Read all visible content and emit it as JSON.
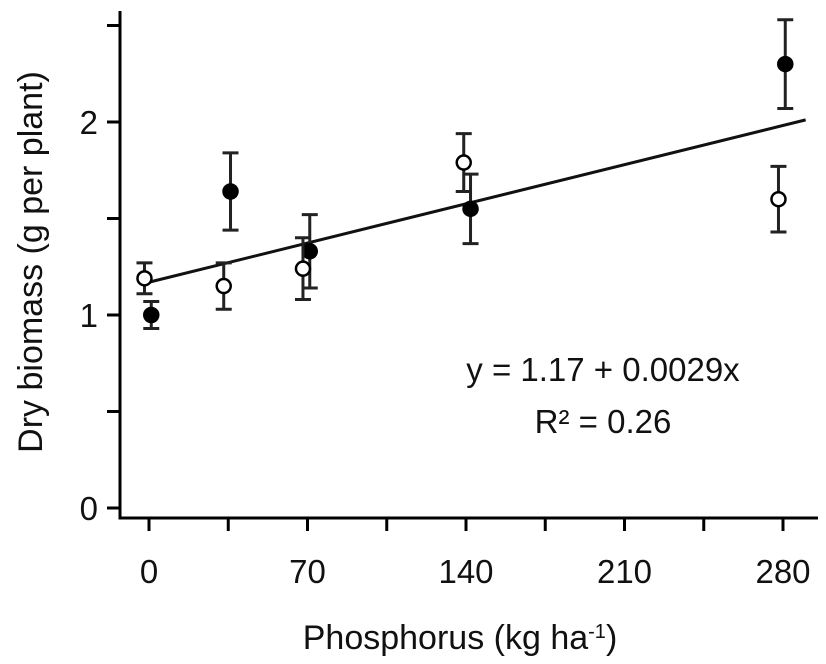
{
  "chart_data": {
    "type": "scatter",
    "title": "",
    "xlabel": "Phosphorus (kg ha",
    "xlabel_superscript": "-1",
    "xlabel_suffix": ")",
    "ylabel": "Dry biomass (g per plant)",
    "xlim": [
      -3,
      295
    ],
    "ylim": [
      -0.15,
      2.55
    ],
    "x_ticks": [
      0,
      35,
      70,
      105,
      140,
      175,
      210,
      245,
      280
    ],
    "x_tick_labels": [
      "0",
      "",
      "70",
      "",
      "140",
      "",
      "210",
      "",
      "280"
    ],
    "y_ticks": [
      0,
      0.5,
      1,
      1.5,
      2,
      2.5
    ],
    "y_tick_labels": [
      "0",
      "",
      "1",
      "",
      "2",
      ""
    ],
    "grid": false,
    "series": [
      {
        "marker": "filled",
        "color": "#000000",
        "points": [
          {
            "x": 1,
            "y": 1.0,
            "err": 0.07
          },
          {
            "x": 36,
            "y": 1.64,
            "err": 0.2
          },
          {
            "x": 71,
            "y": 1.33,
            "err": 0.19
          },
          {
            "x": 142,
            "y": 1.55,
            "err": 0.18
          },
          {
            "x": 281,
            "y": 2.3,
            "err": 0.23
          }
        ]
      },
      {
        "marker": "open",
        "color": "#000000",
        "points": [
          {
            "x": -2,
            "y": 1.19,
            "err": 0.08
          },
          {
            "x": 33,
            "y": 1.15,
            "err": 0.12
          },
          {
            "x": 68,
            "y": 1.24,
            "err": 0.16
          },
          {
            "x": 139,
            "y": 1.79,
            "err": 0.15
          },
          {
            "x": 278,
            "y": 1.6,
            "err": 0.17
          }
        ]
      }
    ],
    "fit": {
      "intercept": 1.17,
      "slope": 0.0029,
      "x_range": [
        -3,
        290
      ]
    },
    "annotations": [
      "y = 1.17 + 0.0029x",
      "R² = 0.26"
    ]
  }
}
